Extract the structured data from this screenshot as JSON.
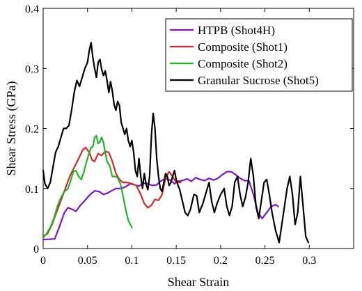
{
  "chart_data": {
    "type": "line",
    "xlabel": "Shear Strain",
    "ylabel": "Shear Stress (GPa)",
    "xlim": [
      0,
      0.35
    ],
    "ylim": [
      0,
      0.4
    ],
    "xticks": [
      0,
      0.05,
      0.1,
      0.15,
      0.2,
      0.25,
      0.3
    ],
    "yticks": [
      0,
      0.1,
      0.2,
      0.3,
      0.4
    ],
    "xtick_labels": [
      "0",
      "0.05",
      "0.1",
      "0.15",
      "0.2",
      "0.25",
      "0.3"
    ],
    "ytick_labels": [
      "0",
      "0.1",
      "0.2",
      "0.3",
      "0.4"
    ],
    "grid": false,
    "legend_position": "top-right",
    "series": [
      {
        "name": "HTPB (Shot4H)",
        "color": "#7b16c9",
        "points": [
          [
            0.0,
            0.015
          ],
          [
            0.013,
            0.016
          ],
          [
            0.018,
            0.035
          ],
          [
            0.024,
            0.06
          ],
          [
            0.028,
            0.068
          ],
          [
            0.033,
            0.065
          ],
          [
            0.037,
            0.062
          ],
          [
            0.042,
            0.072
          ],
          [
            0.047,
            0.08
          ],
          [
            0.053,
            0.09
          ],
          [
            0.058,
            0.096
          ],
          [
            0.063,
            0.095
          ],
          [
            0.068,
            0.09
          ],
          [
            0.072,
            0.092
          ],
          [
            0.077,
            0.096
          ],
          [
            0.082,
            0.1
          ],
          [
            0.088,
            0.1
          ],
          [
            0.093,
            0.103
          ],
          [
            0.098,
            0.108
          ],
          [
            0.103,
            0.106
          ],
          [
            0.108,
            0.104
          ],
          [
            0.113,
            0.109
          ],
          [
            0.118,
            0.108
          ],
          [
            0.123,
            0.105
          ],
          [
            0.128,
            0.106
          ],
          [
            0.133,
            0.113
          ],
          [
            0.138,
            0.116
          ],
          [
            0.143,
            0.114
          ],
          [
            0.148,
            0.108
          ],
          [
            0.152,
            0.112
          ],
          [
            0.157,
            0.113
          ],
          [
            0.162,
            0.116
          ],
          [
            0.167,
            0.112
          ],
          [
            0.172,
            0.118
          ],
          [
            0.177,
            0.115
          ],
          [
            0.182,
            0.113
          ],
          [
            0.187,
            0.117
          ],
          [
            0.192,
            0.114
          ],
          [
            0.197,
            0.117
          ],
          [
            0.202,
            0.123
          ],
          [
            0.207,
            0.128
          ],
          [
            0.212,
            0.128
          ],
          [
            0.217,
            0.123
          ],
          [
            0.222,
            0.117
          ],
          [
            0.227,
            0.113
          ],
          [
            0.232,
            0.113
          ],
          [
            0.237,
            0.09
          ],
          [
            0.242,
            0.06
          ],
          [
            0.247,
            0.05
          ],
          [
            0.252,
            0.06
          ],
          [
            0.257,
            0.07
          ],
          [
            0.262,
            0.073
          ],
          [
            0.265,
            0.07
          ]
        ]
      },
      {
        "name": "Composite (Shot1)",
        "color": "#d62728",
        "points": [
          [
            0.0,
            0.02
          ],
          [
            0.005,
            0.025
          ],
          [
            0.01,
            0.04
          ],
          [
            0.015,
            0.06
          ],
          [
            0.02,
            0.08
          ],
          [
            0.025,
            0.1
          ],
          [
            0.03,
            0.12
          ],
          [
            0.035,
            0.135
          ],
          [
            0.04,
            0.15
          ],
          [
            0.045,
            0.165
          ],
          [
            0.048,
            0.168
          ],
          [
            0.052,
            0.16
          ],
          [
            0.055,
            0.148
          ],
          [
            0.058,
            0.145
          ],
          [
            0.062,
            0.158
          ],
          [
            0.066,
            0.155
          ],
          [
            0.07,
            0.162
          ],
          [
            0.074,
            0.16
          ],
          [
            0.078,
            0.145
          ],
          [
            0.082,
            0.125
          ],
          [
            0.086,
            0.115
          ],
          [
            0.09,
            0.11
          ],
          [
            0.095,
            0.11
          ],
          [
            0.1,
            0.108
          ],
          [
            0.105,
            0.105
          ],
          [
            0.11,
            0.09
          ],
          [
            0.114,
            0.075
          ],
          [
            0.118,
            0.068
          ],
          [
            0.122,
            0.072
          ],
          [
            0.126,
            0.082
          ],
          [
            0.13,
            0.08
          ],
          [
            0.134,
            0.09
          ],
          [
            0.138,
            0.118
          ],
          [
            0.142,
            0.128
          ],
          [
            0.146,
            0.12
          ],
          [
            0.15,
            0.11
          ],
          [
            0.155,
            0.11
          ]
        ]
      },
      {
        "name": "Composite (Shot2)",
        "color": "#22b422",
        "points": [
          [
            0.0,
            0.018
          ],
          [
            0.004,
            0.025
          ],
          [
            0.008,
            0.035
          ],
          [
            0.012,
            0.05
          ],
          [
            0.016,
            0.07
          ],
          [
            0.02,
            0.085
          ],
          [
            0.024,
            0.095
          ],
          [
            0.028,
            0.1
          ],
          [
            0.031,
            0.113
          ],
          [
            0.034,
            0.128
          ],
          [
            0.037,
            0.13
          ],
          [
            0.04,
            0.12
          ],
          [
            0.043,
            0.115
          ],
          [
            0.046,
            0.128
          ],
          [
            0.049,
            0.145
          ],
          [
            0.052,
            0.16
          ],
          [
            0.054,
            0.168
          ],
          [
            0.056,
            0.17
          ],
          [
            0.058,
            0.185
          ],
          [
            0.06,
            0.188
          ],
          [
            0.062,
            0.175
          ],
          [
            0.064,
            0.178
          ],
          [
            0.066,
            0.185
          ],
          [
            0.068,
            0.176
          ],
          [
            0.07,
            0.16
          ],
          [
            0.072,
            0.145
          ],
          [
            0.075,
            0.138
          ],
          [
            0.078,
            0.12
          ],
          [
            0.081,
            0.12
          ],
          [
            0.084,
            0.118
          ],
          [
            0.087,
            0.108
          ],
          [
            0.09,
            0.088
          ],
          [
            0.093,
            0.065
          ],
          [
            0.096,
            0.047
          ],
          [
            0.1,
            0.035
          ]
        ]
      },
      {
        "name": "Granular Sucrose (Shot5)",
        "color": "#000000",
        "points": [
          [
            0.0,
            0.13
          ],
          [
            0.002,
            0.108
          ],
          [
            0.005,
            0.1
          ],
          [
            0.008,
            0.11
          ],
          [
            0.011,
            0.135
          ],
          [
            0.014,
            0.16
          ],
          [
            0.017,
            0.17
          ],
          [
            0.02,
            0.185
          ],
          [
            0.023,
            0.2
          ],
          [
            0.026,
            0.2
          ],
          [
            0.029,
            0.205
          ],
          [
            0.032,
            0.23
          ],
          [
            0.035,
            0.26
          ],
          [
            0.038,
            0.28
          ],
          [
            0.041,
            0.27
          ],
          [
            0.044,
            0.285
          ],
          [
            0.047,
            0.3
          ],
          [
            0.05,
            0.31
          ],
          [
            0.052,
            0.33
          ],
          [
            0.054,
            0.343
          ],
          [
            0.056,
            0.318
          ],
          [
            0.058,
            0.3
          ],
          [
            0.06,
            0.285
          ],
          [
            0.062,
            0.31
          ],
          [
            0.064,
            0.315
          ],
          [
            0.066,
            0.298
          ],
          [
            0.068,
            0.288
          ],
          [
            0.07,
            0.296
          ],
          [
            0.072,
            0.28
          ],
          [
            0.074,
            0.26
          ],
          [
            0.076,
            0.278
          ],
          [
            0.078,
            0.262
          ],
          [
            0.08,
            0.24
          ],
          [
            0.082,
            0.23
          ],
          [
            0.084,
            0.245
          ],
          [
            0.086,
            0.238
          ],
          [
            0.088,
            0.21
          ],
          [
            0.09,
            0.2
          ],
          [
            0.092,
            0.19
          ],
          [
            0.094,
            0.2
          ],
          [
            0.096,
            0.18
          ],
          [
            0.098,
            0.17
          ],
          [
            0.1,
            0.18
          ],
          [
            0.102,
            0.16
          ],
          [
            0.104,
            0.13
          ],
          [
            0.106,
            0.12
          ],
          [
            0.108,
            0.15
          ],
          [
            0.11,
            0.12
          ],
          [
            0.112,
            0.1
          ],
          [
            0.114,
            0.125
          ],
          [
            0.116,
            0.108
          ],
          [
            0.118,
            0.098
          ],
          [
            0.12,
            0.12
          ],
          [
            0.122,
            0.188
          ],
          [
            0.124,
            0.225
          ],
          [
            0.126,
            0.2
          ],
          [
            0.128,
            0.15
          ],
          [
            0.13,
            0.12
          ],
          [
            0.132,
            0.1
          ],
          [
            0.134,
            0.095
          ],
          [
            0.136,
            0.11
          ],
          [
            0.138,
            0.125
          ],
          [
            0.14,
            0.12
          ],
          [
            0.142,
            0.105
          ],
          [
            0.144,
            0.11
          ],
          [
            0.146,
            0.12
          ],
          [
            0.148,
            0.13
          ],
          [
            0.15,
            0.115
          ],
          [
            0.152,
            0.105
          ],
          [
            0.154,
            0.098
          ],
          [
            0.156,
            0.085
          ],
          [
            0.16,
            0.06
          ],
          [
            0.163,
            0.055
          ],
          [
            0.166,
            0.065
          ],
          [
            0.17,
            0.09
          ],
          [
            0.173,
            0.088
          ],
          [
            0.176,
            0.06
          ],
          [
            0.18,
            0.075
          ],
          [
            0.184,
            0.095
          ],
          [
            0.187,
            0.11
          ],
          [
            0.19,
            0.078
          ],
          [
            0.193,
            0.06
          ],
          [
            0.196,
            0.075
          ],
          [
            0.2,
            0.09
          ],
          [
            0.204,
            0.1
          ],
          [
            0.207,
            0.07
          ],
          [
            0.21,
            0.055
          ],
          [
            0.213,
            0.07
          ],
          [
            0.216,
            0.11
          ],
          [
            0.219,
            0.12
          ],
          [
            0.222,
            0.09
          ],
          [
            0.225,
            0.07
          ],
          [
            0.228,
            0.085
          ],
          [
            0.231,
            0.11
          ],
          [
            0.234,
            0.15
          ],
          [
            0.237,
            0.12
          ],
          [
            0.24,
            0.07
          ],
          [
            0.243,
            0.05
          ],
          [
            0.246,
            0.08
          ],
          [
            0.249,
            0.11
          ],
          [
            0.252,
            0.115
          ],
          [
            0.255,
            0.09
          ],
          [
            0.258,
            0.06
          ],
          [
            0.262,
            0.03
          ],
          [
            0.266,
            0.01
          ],
          [
            0.269,
            0.04
          ],
          [
            0.272,
            0.07
          ],
          [
            0.275,
            0.1
          ],
          [
            0.278,
            0.12
          ],
          [
            0.281,
            0.09
          ],
          [
            0.284,
            0.04
          ],
          [
            0.287,
            0.06
          ],
          [
            0.29,
            0.12
          ],
          [
            0.293,
            0.07
          ],
          [
            0.296,
            0.02
          ],
          [
            0.299,
            0.01
          ]
        ]
      }
    ]
  }
}
